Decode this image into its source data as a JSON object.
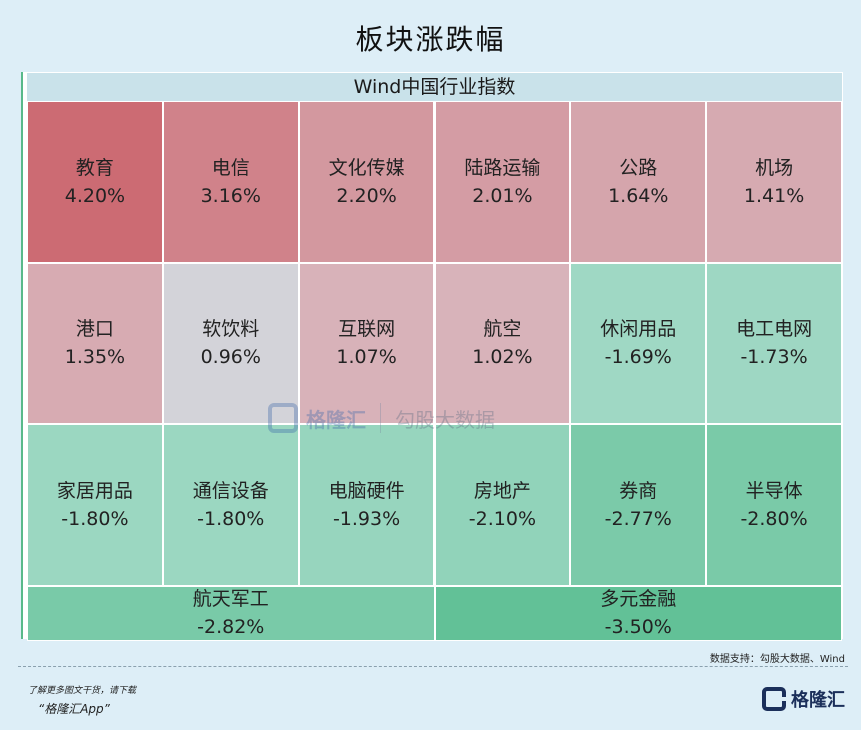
{
  "title": "板块涨跌幅",
  "header": "Wind中国行业指数",
  "source": "数据支持：勾股大数据、Wind",
  "footer": {
    "line1": "了解更多图文干货，请下载",
    "line2": "“格隆汇App”"
  },
  "logo": {
    "name": "格隆汇",
    "icon": "gelonghui-logo-icon"
  },
  "watermark": {
    "text1": "格隆汇",
    "text2": "勾股大数据",
    "icon": "gelonghui-watermark-icon"
  },
  "colors": {
    "pos_strong": "#cc6b73",
    "neg_strong": "#62c197",
    "neutral": "#d3d3d9",
    "header_bg": "#c9e2ea",
    "page_bg": "#ddeef7"
  },
  "chart_data": {
    "type": "heatmap",
    "title": "板块涨跌幅",
    "subtitle": "Wind中国行业指数",
    "unit": "%",
    "items": [
      {
        "name": "教育",
        "value": 4.2,
        "label": "4.20%"
      },
      {
        "name": "电信",
        "value": 3.16,
        "label": "3.16%"
      },
      {
        "name": "文化传媒",
        "value": 2.2,
        "label": "2.20%"
      },
      {
        "name": "陆路运输",
        "value": 2.01,
        "label": "2.01%"
      },
      {
        "name": "公路",
        "value": 1.64,
        "label": "1.64%"
      },
      {
        "name": "机场",
        "value": 1.41,
        "label": "1.41%"
      },
      {
        "name": "港口",
        "value": 1.35,
        "label": "1.35%"
      },
      {
        "name": "软饮料",
        "value": 0.96,
        "label": "0.96%"
      },
      {
        "name": "互联网",
        "value": 1.07,
        "label": "1.07%"
      },
      {
        "name": "航空",
        "value": 1.02,
        "label": "1.02%"
      },
      {
        "name": "休闲用品",
        "value": -1.69,
        "label": "-1.69%"
      },
      {
        "name": "电工电网",
        "value": -1.73,
        "label": "-1.73%"
      },
      {
        "name": "家居用品",
        "value": -1.8,
        "label": "-1.80%"
      },
      {
        "name": "通信设备",
        "value": -1.8,
        "label": "-1.80%"
      },
      {
        "name": "电脑硬件",
        "value": -1.93,
        "label": "-1.93%"
      },
      {
        "name": "房地产",
        "value": -2.1,
        "label": "-2.10%"
      },
      {
        "name": "券商",
        "value": -2.77,
        "label": "-2.77%"
      },
      {
        "name": "半导体",
        "value": -2.8,
        "label": "-2.80%"
      },
      {
        "name": "航天军工",
        "value": -2.82,
        "label": "-2.82%"
      },
      {
        "name": "多元金融",
        "value": -3.5,
        "label": "-3.50%"
      }
    ]
  }
}
